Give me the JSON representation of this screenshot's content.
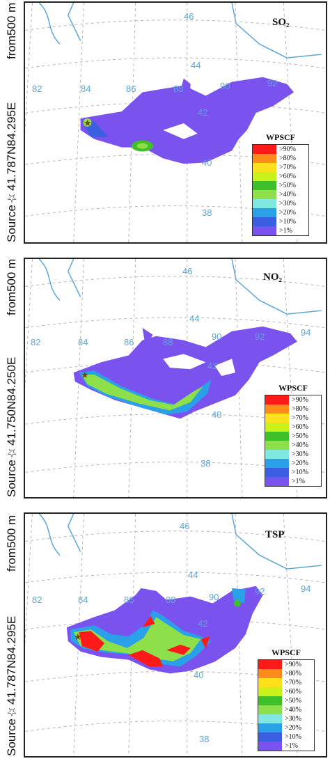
{
  "legend": {
    "title": "WPSCF",
    "levels": [
      {
        "label": ">90%",
        "color": "#ff1a1a"
      },
      {
        "label": ">80%",
        "color": "#ff8c1a"
      },
      {
        "label": ">70%",
        "color": "#ffe01a"
      },
      {
        "label": ">60%",
        "color": "#c8f21a"
      },
      {
        "label": ">50%",
        "color": "#3fbf2a"
      },
      {
        "label": ">40%",
        "color": "#8de04a"
      },
      {
        "label": ">30%",
        "color": "#7fe8e0"
      },
      {
        "label": ">20%",
        "color": "#2aa0e8"
      },
      {
        "label": ">10%",
        "color": "#3a5fe0"
      },
      {
        "label": ">1%",
        "color": "#7a52ee"
      }
    ]
  },
  "panels": [
    {
      "title": "SO₂",
      "side_label": {
        "source": "Source☆",
        "lat": "41.787",
        "n": "N",
        "lon": "84.295",
        "e": "E",
        "from": "from",
        "height": "500 m"
      },
      "lat_labels": [
        "46",
        "44",
        "42",
        "40",
        "38"
      ],
      "lon_labels": [
        "82",
        "84",
        "86",
        "88",
        "90",
        "92"
      ]
    },
    {
      "title": "NO₂",
      "side_label": {
        "source": "Source☆",
        "lat": "41.750",
        "n": "N",
        "lon": "84.250",
        "e": "E",
        "from": "from",
        "height": "500 m"
      },
      "lat_labels": [
        "46",
        "44",
        "42",
        "40",
        "38"
      ],
      "lon_labels": [
        "82",
        "84",
        "86",
        "88",
        "90",
        "92",
        "94"
      ]
    },
    {
      "title": "TSP",
      "side_label": {
        "source": "Source☆",
        "lat": "41.787",
        "n": "N",
        "lon": "84.295",
        "e": "E",
        "from": "from",
        "height": "500 m"
      },
      "lat_labels": [
        "46",
        "44",
        "42",
        "40",
        "38"
      ],
      "lon_labels": [
        "82",
        "84",
        "86",
        "88",
        "90",
        "92",
        "94"
      ]
    }
  ]
}
